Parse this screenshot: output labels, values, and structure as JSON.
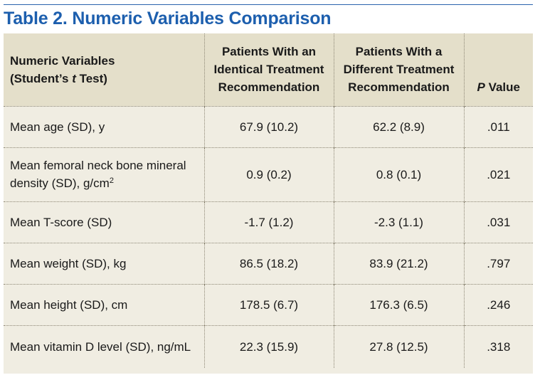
{
  "title": "Table 2. Numeric Variables Comparison",
  "header": {
    "col0_line1": "Numeric Variables",
    "col0_line2_pre": "(Student’s ",
    "col0_line2_italic": "t",
    "col0_line2_post": " Test)",
    "col1_line1": "Patients With an",
    "col1_line2": "Identical Treatment",
    "col1_line3": "Recommendation",
    "col2_line1": "Patients With a",
    "col2_line2": "Different Treatment",
    "col2_line3": "Recommendation",
    "col3_italic": "P",
    "col3_rest": " Value"
  },
  "rows": [
    {
      "label": "Mean age (SD), y",
      "identical": "67.9 (10.2)",
      "different": "62.2 (8.9)",
      "p": ".011"
    },
    {
      "label_line1": "Mean femoral neck bone mineral",
      "label_line2": "density (SD), g/cm",
      "label_sup": "2",
      "identical": "0.9 (0.2)",
      "different": "0.8 (0.1)",
      "p": ".021"
    },
    {
      "label": "Mean T-score (SD)",
      "identical": "-1.7 (1.2)",
      "different": "-2.3 (1.1)",
      "p": ".031"
    },
    {
      "label": "Mean weight (SD), kg",
      "identical": "86.5 (18.2)",
      "different": "83.9 (21.2)",
      "p": ".797"
    },
    {
      "label": "Mean height (SD), cm",
      "identical": "178.5 (6.7)",
      "different": "176.3 (6.5)",
      "p": ".246"
    },
    {
      "label": "Mean vitamin D level (SD), ng/mL",
      "identical": "22.3 (15.9)",
      "different": "27.8 (12.5)",
      "p": ".318"
    }
  ],
  "colors": {
    "title": "#1d5fae",
    "header_bg": "#e4dfca",
    "body_bg": "#f0ede2"
  }
}
